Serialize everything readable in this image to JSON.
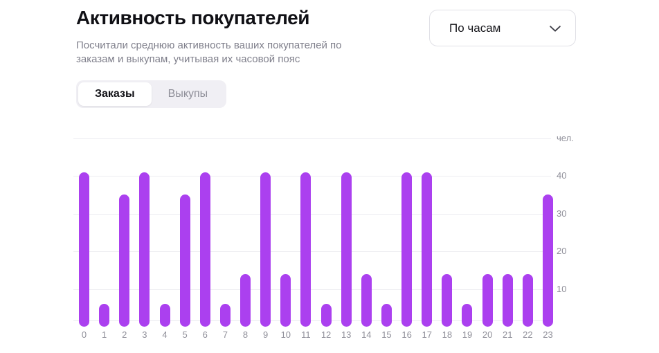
{
  "header": {
    "title": "Активность покупателей",
    "subtitle_line1": "Посчитали среднюю активность ваших покупателей по",
    "subtitle_line2": "заказам и выкупам, учитывая их часовой пояс",
    "period_selector": {
      "value": "По часам",
      "icon": "chevron-down-icon"
    }
  },
  "tabs": [
    {
      "label": "Заказы",
      "selected": true
    },
    {
      "label": "Выкупы",
      "selected": false
    }
  ],
  "chart_data": {
    "type": "bar",
    "title": "Активность покупателей",
    "unit_label": "чел.",
    "categories": [
      "0",
      "1",
      "2",
      "3",
      "4",
      "5",
      "6",
      "7",
      "8",
      "9",
      "10",
      "11",
      "12",
      "13",
      "14",
      "15",
      "16",
      "17",
      "18",
      "19",
      "20",
      "21",
      "22",
      "23"
    ],
    "values": [
      41,
      6,
      35,
      41,
      6,
      35,
      41,
      6,
      14,
      41,
      14,
      41,
      6,
      41,
      14,
      6,
      41,
      41,
      14,
      6,
      14,
      14,
      14,
      35
    ],
    "xlabel": "",
    "ylabel": "чел.",
    "ylim": [
      0,
      50
    ],
    "yticks": [
      10,
      20,
      30,
      40
    ],
    "grid": true,
    "legend": "none",
    "bar_color": "#AB40EF",
    "grid_color": "#ededf1",
    "tick_color": "#8f8f99"
  }
}
